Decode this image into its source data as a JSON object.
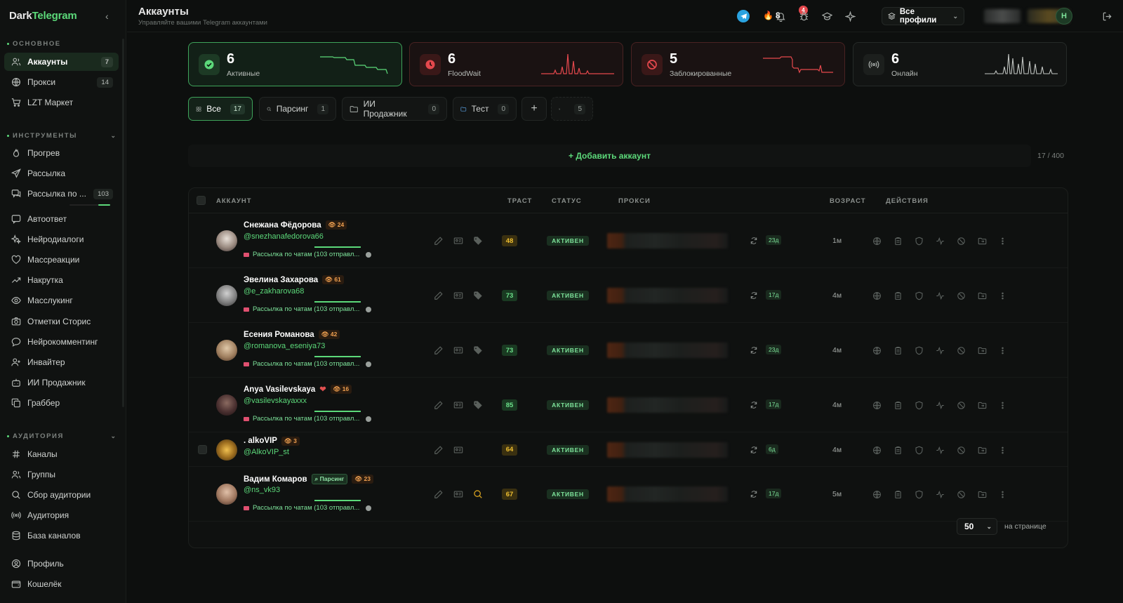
{
  "app": {
    "brand_dark": "Dark",
    "brand_tg": "Telegram"
  },
  "sidebar": {
    "section_main": "ОСНОВНОЕ",
    "section_tools": "ИНСТРУМЕНТЫ",
    "section_audience": "АУДИТОРИЯ",
    "items": [
      {
        "label": "Аккаунты",
        "icon": "users-icon",
        "count": "7"
      },
      {
        "label": "Прокси",
        "icon": "globe-icon",
        "count": "14"
      },
      {
        "label": "LZT Маркет",
        "icon": "cart-icon"
      },
      {
        "label": "Прогрев",
        "icon": "flame-icon"
      },
      {
        "label": "Рассылка",
        "icon": "send-icon"
      },
      {
        "label": "Рассылка по ...",
        "icon": "chat-broadcast-icon",
        "count": "103",
        "progress": 0.3
      },
      {
        "label": "Автоответ",
        "icon": "message-icon"
      },
      {
        "label": "Нейродиалоги",
        "icon": "sparkles-icon"
      },
      {
        "label": "Массреакции",
        "icon": "heart-icon"
      },
      {
        "label": "Накрутка",
        "icon": "trending-up-icon"
      },
      {
        "label": "Масслукинг",
        "icon": "eye-icon"
      },
      {
        "label": "Отметки Сторис",
        "icon": "camera-icon"
      },
      {
        "label": "Нейрокомментинг",
        "icon": "comment-icon"
      },
      {
        "label": "Инвайтер",
        "icon": "user-plus-icon"
      },
      {
        "label": "ИИ Продажник",
        "icon": "bot-icon"
      },
      {
        "label": "Граббер",
        "icon": "copy-icon"
      },
      {
        "label": "Каналы",
        "icon": "hash-icon"
      },
      {
        "label": "Группы",
        "icon": "group-icon"
      },
      {
        "label": "Сбор аудитории",
        "icon": "search-icon"
      },
      {
        "label": "Аудитория",
        "icon": "broadcast-icon"
      },
      {
        "label": "База каналов",
        "icon": "database-icon"
      },
      {
        "label": "Профиль",
        "icon": "user-circle-icon"
      },
      {
        "label": "Кошелёк",
        "icon": "wallet-icon"
      }
    ]
  },
  "header": {
    "title": "Аккаунты",
    "subtitle": "Управляйте вашими Telegram аккаунтами",
    "fire_count": "8",
    "notif_count": "4",
    "profiles_label": "Все профили",
    "avatar_letter": "Н"
  },
  "stats": [
    {
      "value": "6",
      "label": "Активные",
      "tone": "green"
    },
    {
      "value": "6",
      "label": "FloodWait",
      "tone": "red"
    },
    {
      "value": "5",
      "label": "Заблокированные",
      "tone": "red"
    },
    {
      "value": "6",
      "label": "Онлайн",
      "tone": "neutral"
    }
  ],
  "filters": [
    {
      "label": "Все",
      "count": "17",
      "icon": "grid-icon"
    },
    {
      "label": "Парсинг",
      "count": "1",
      "icon": "search-icon"
    },
    {
      "label": "ИИ Продажник",
      "count": "0",
      "icon": "folder-icon"
    },
    {
      "label": "Тест",
      "count": "0",
      "icon": "folder-icon"
    },
    {
      "label": "",
      "count": "5",
      "icon": "eye-off-icon"
    }
  ],
  "add_account_label": "+ Добавить аккаунт",
  "account_count": "17 / 400",
  "table": {
    "headers": {
      "account": "АККАУНТ",
      "trust": "ТРАСТ",
      "status": "СТАТУС",
      "proxy": "ПРОКСИ",
      "age": "ВОЗРАСТ",
      "actions": "ДЕЙСТВИЯ"
    },
    "rows": [
      {
        "name": "Снежана Фёдорова",
        "views": "24",
        "handle": "@snezhanafedorova66",
        "task": "Рассылка по чатам (103 отправл...",
        "trust": "48",
        "trust_tone": "y",
        "status": "АКТИВЕН",
        "proxy_days": "23д",
        "age": "1м"
      },
      {
        "name": "Эвелина Захарова",
        "views": "61",
        "handle": "@e_zakharova68",
        "task": "Рассылка по чатам (103 отправл...",
        "trust": "73",
        "trust_tone": "g",
        "status": "АКТИВЕН",
        "proxy_days": "17д",
        "age": "4м"
      },
      {
        "name": "Есения Романова",
        "views": "42",
        "handle": "@romanova_eseniya73",
        "task": "Рассылка по чатам (103 отправл...",
        "trust": "73",
        "trust_tone": "g",
        "status": "АКТИВЕН",
        "proxy_days": "23д",
        "age": "4м"
      },
      {
        "name": "Anya Vasilevskaya",
        "views": "16",
        "handle": "@vasilevskayaxxx",
        "task": "Рассылка по чатам (103 отправл...",
        "trust": "85",
        "trust_tone": "g",
        "status": "АКТИВЕН",
        "proxy_days": "17д",
        "age": "4м"
      },
      {
        "name": ". alkoVIP",
        "views": "3",
        "handle": "@AlkoVIP_st",
        "task": "",
        "trust": "64",
        "trust_tone": "y",
        "status": "АКТИВЕН",
        "proxy_days": "6д",
        "age": "4м"
      },
      {
        "name": "Вадим Комаров",
        "tag": "Парсинг",
        "views": "23",
        "handle": "@ns_vk93",
        "task": "Рассылка по чатам (103 отправл...",
        "trust": "67",
        "trust_tone": "y",
        "status": "АКТИВЕН",
        "proxy_days": "17д",
        "age": "5м"
      }
    ]
  },
  "pagination": {
    "per_page": "50",
    "per_page_label": "на странице"
  }
}
